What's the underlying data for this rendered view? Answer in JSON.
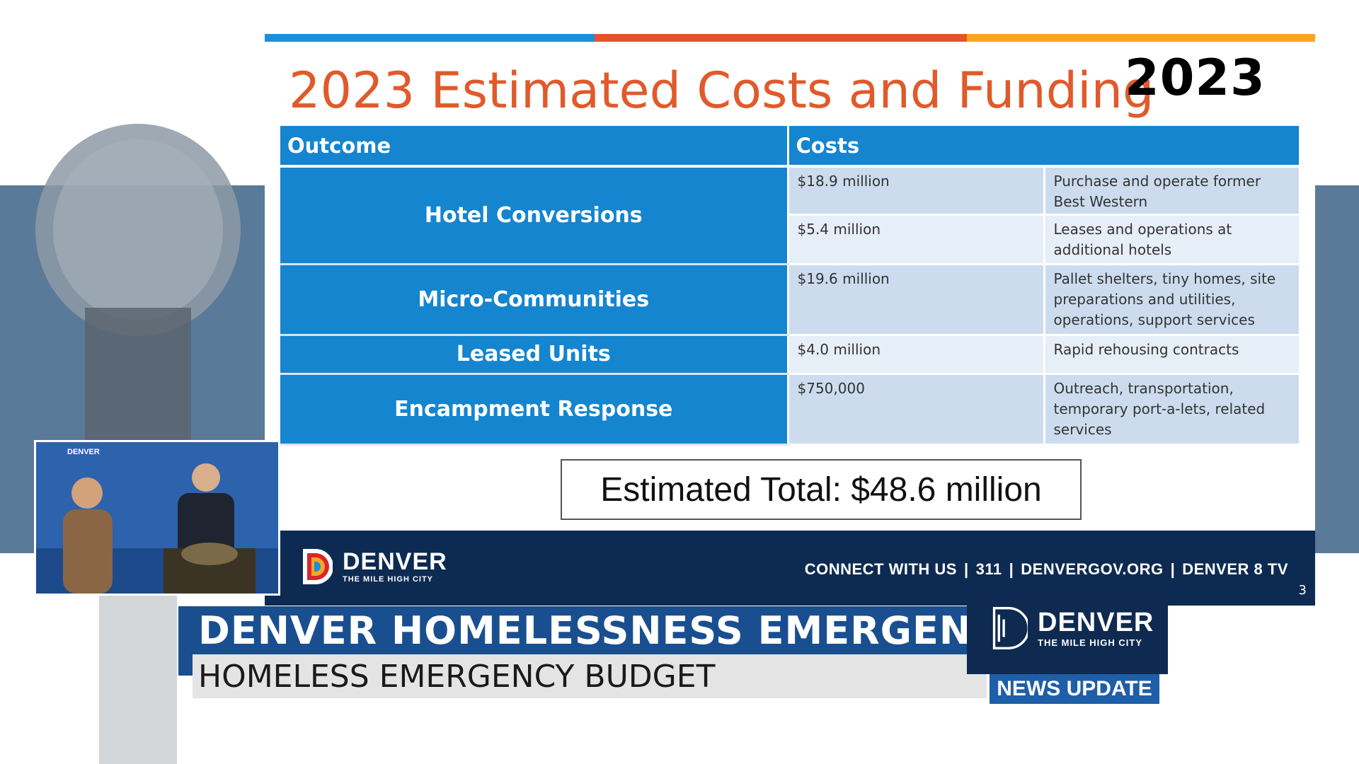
{
  "slide": {
    "title": "2023 Estimated Costs and Funding",
    "year_badge": "2023",
    "accent_colors": [
      "#1b8fd9",
      "#e2552b",
      "#f5a623"
    ],
    "table": {
      "headers": {
        "outcome": "Outcome",
        "costs": "Costs"
      },
      "rows": [
        {
          "outcome": "Hotel Conversions",
          "amount": "$18.9 million",
          "description": "Purchase and operate former Best Western"
        },
        {
          "outcome": "",
          "amount": "$5.4 million",
          "description": "Leases and operations at additional hotels"
        },
        {
          "outcome": "Micro-Communities",
          "amount": "$19.6 million",
          "description": "Pallet shelters, tiny homes, site preparations and utilities, operations, support services"
        },
        {
          "outcome": "Leased Units",
          "amount": "$4.0 million",
          "description": "Rapid rehousing contracts"
        },
        {
          "outcome": "Encampment Response",
          "amount": "$750,000",
          "description": "Outreach, transportation, temporary port-a-lets, related services"
        }
      ]
    },
    "total": "Estimated Total: $48.6 million",
    "footer": {
      "logo_name": "DENVER",
      "logo_tagline": "THE MILE HIGH CITY",
      "links": [
        "CONNECT WITH US",
        "311",
        "DENVERGOV.ORG",
        "DENVER 8 TV"
      ],
      "slide_number": "3"
    }
  },
  "pip": {
    "backdrop_label": "DENVER"
  },
  "lower_third": {
    "headline": "DENVER HOMELESSNESS EMERGENCY",
    "subheadline": "HOMELESS EMERGENCY BUDGET",
    "logo_name": "DENVER",
    "logo_tagline": "THE MILE HIGH CITY",
    "badge": "NEWS UPDATE"
  },
  "colors": {
    "title_orange": "#e05a2b",
    "table_blue": "#1585cf",
    "footer_navy": "#0d2b52",
    "lower_third_blue": "#1a4f8f"
  },
  "icons": [
    "denver-logo-icon",
    "microphone-icon"
  ]
}
